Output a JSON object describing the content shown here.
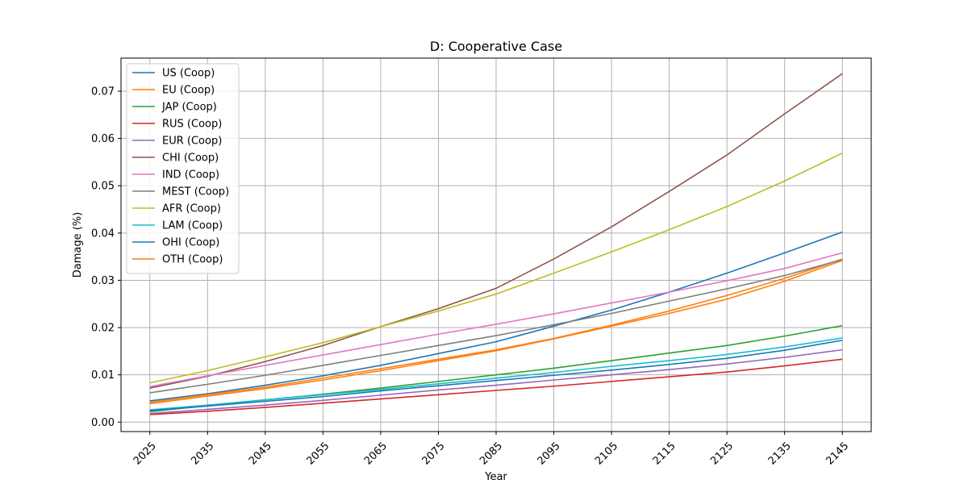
{
  "chart_data": {
    "type": "line",
    "title": "D: Cooperative Case",
    "xlabel": "Year",
    "ylabel": "Damage (%)",
    "x": [
      2025,
      2035,
      2045,
      2055,
      2065,
      2075,
      2085,
      2095,
      2105,
      2115,
      2125,
      2135,
      2145
    ],
    "xlim": [
      2020,
      2150
    ],
    "ylim": [
      -0.002,
      0.077
    ],
    "yticks": [
      0.0,
      0.01,
      0.02,
      0.03,
      0.04,
      0.05,
      0.06,
      0.07
    ],
    "ytick_labels": [
      "0.00",
      "0.01",
      "0.02",
      "0.03",
      "0.04",
      "0.05",
      "0.06",
      "0.07"
    ],
    "grid": true,
    "legend_position": "upper-left",
    "series": [
      {
        "name": "US (Coop)",
        "color": "#1f77b4",
        "values": [
          0.0045,
          0.006,
          0.0078,
          0.0098,
          0.012,
          0.0145,
          0.017,
          0.0203,
          0.0237,
          0.0275,
          0.0315,
          0.0358,
          0.0402
        ]
      },
      {
        "name": "EU (Coop)",
        "color": "#ff7f0e",
        "values": [
          0.0042,
          0.0058,
          0.0074,
          0.0093,
          0.0113,
          0.0133,
          0.0153,
          0.0177,
          0.0205,
          0.0235,
          0.0268,
          0.0304,
          0.0345
        ]
      },
      {
        "name": "JAP (Coop)",
        "color": "#2ca02c",
        "values": [
          0.0022,
          0.0035,
          0.0047,
          0.0059,
          0.0072,
          0.0086,
          0.01,
          0.0114,
          0.013,
          0.0146,
          0.0162,
          0.0182,
          0.0204
        ]
      },
      {
        "name": "RUS (Coop)",
        "color": "#d62728",
        "values": [
          0.0016,
          0.0023,
          0.0031,
          0.004,
          0.0049,
          0.0058,
          0.0067,
          0.0076,
          0.0086,
          0.0096,
          0.0106,
          0.0119,
          0.0133
        ]
      },
      {
        "name": "EUR (Coop)",
        "color": "#9467bd",
        "values": [
          0.0018,
          0.0027,
          0.0036,
          0.0046,
          0.0057,
          0.0068,
          0.0078,
          0.0089,
          0.01,
          0.0111,
          0.0123,
          0.0137,
          0.0153
        ]
      },
      {
        "name": "CHI (Coop)",
        "color": "#8c564b",
        "values": [
          0.0072,
          0.0097,
          0.0128,
          0.0162,
          0.0202,
          0.024,
          0.0283,
          0.0345,
          0.0413,
          0.0488,
          0.0565,
          0.0652,
          0.0737
        ]
      },
      {
        "name": "IND (Coop)",
        "color": "#e377c2",
        "values": [
          0.0075,
          0.0098,
          0.012,
          0.0142,
          0.0164,
          0.0186,
          0.0207,
          0.0229,
          0.0252,
          0.0275,
          0.0299,
          0.0325,
          0.0358
        ]
      },
      {
        "name": "MEST (Coop)",
        "color": "#7f7f7f",
        "values": [
          0.0062,
          0.008,
          0.0099,
          0.012,
          0.0141,
          0.0162,
          0.0183,
          0.0206,
          0.023,
          0.0256,
          0.0282,
          0.031,
          0.0344
        ]
      },
      {
        "name": "AFR (Coop)",
        "color": "#bcbd22",
        "values": [
          0.0083,
          0.0109,
          0.0138,
          0.0168,
          0.0202,
          0.0235,
          0.0271,
          0.0315,
          0.036,
          0.0407,
          0.0456,
          0.051,
          0.0569
        ]
      },
      {
        "name": "LAM (Coop)",
        "color": "#17becf",
        "values": [
          0.0026,
          0.0036,
          0.0047,
          0.0058,
          0.0069,
          0.0081,
          0.0093,
          0.0105,
          0.0118,
          0.013,
          0.0143,
          0.0159,
          0.0178
        ]
      },
      {
        "name": "OHI (Coop)",
        "color": "#1f77b4",
        "values": [
          0.0024,
          0.0034,
          0.0044,
          0.0054,
          0.0066,
          0.0077,
          0.0088,
          0.0099,
          0.011,
          0.0122,
          0.0135,
          0.0152,
          0.0173
        ]
      },
      {
        "name": "OTH (Coop)",
        "color": "#ff7f0e",
        "values": [
          0.0039,
          0.0055,
          0.0071,
          0.0089,
          0.0109,
          0.013,
          0.0151,
          0.0176,
          0.0203,
          0.023,
          0.026,
          0.0298,
          0.0342
        ]
      }
    ]
  }
}
